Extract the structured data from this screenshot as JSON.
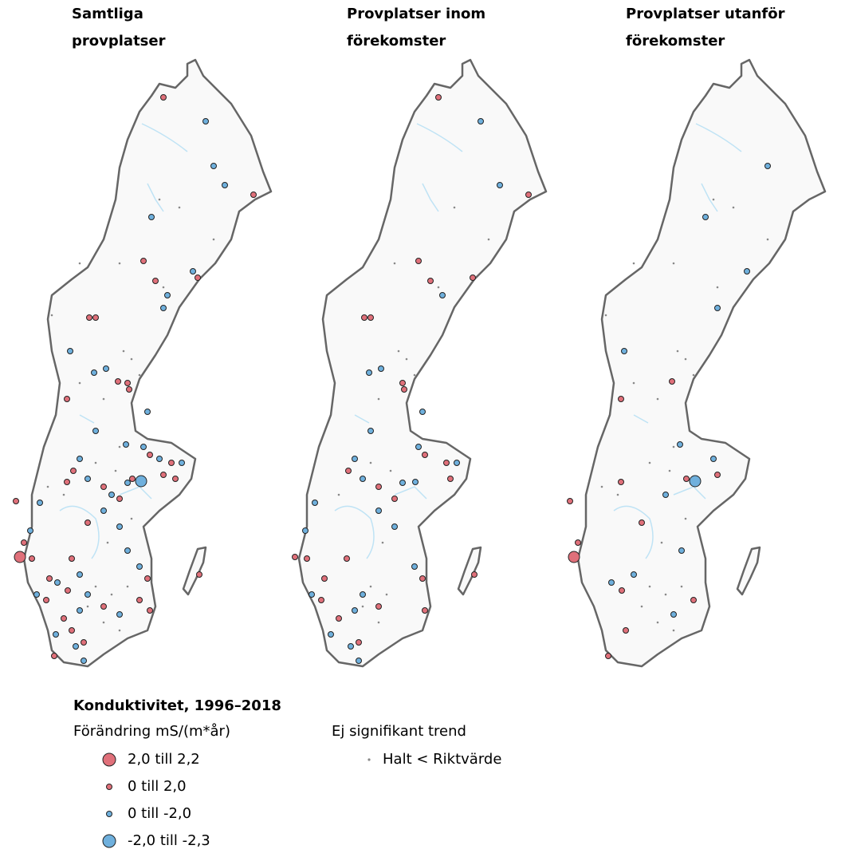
{
  "panels": [
    {
      "title_lines": [
        "Samtliga",
        "provplatser"
      ]
    },
    {
      "title_lines": [
        "Provplatser inom",
        "förekomster"
      ]
    },
    {
      "title_lines": [
        "Provplatser utanför",
        "förekomster"
      ]
    }
  ],
  "legend": {
    "title": "Konduktivitet, 1996–2018",
    "subtitle": "Förändring mS/(m*år)",
    "items": [
      "2,0 till 2,2",
      "0 till 2,0",
      "0 till -2,0",
      "-2,0 till -2,3"
    ],
    "ns_title": "Ej signifikant trend",
    "ns_item": "Halt < Riktvärde"
  }
}
